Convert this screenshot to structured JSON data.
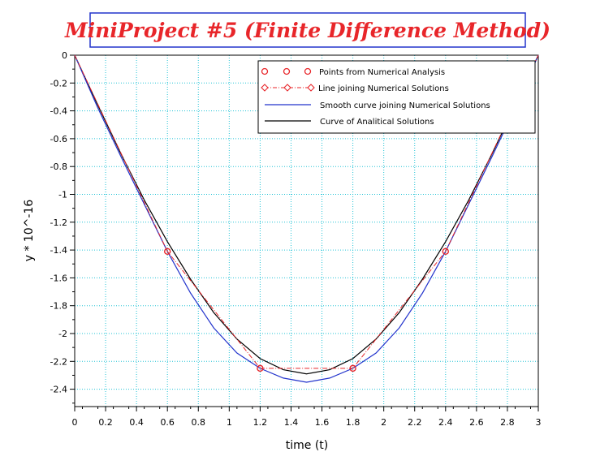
{
  "chart_data": {
    "type": "line",
    "title": "MiniProject #5 (Finite Difference Method)",
    "xlabel": "time (t)",
    "ylabel": "y * 10^-16",
    "xlim": [
      0,
      3
    ],
    "ylim": [
      -2.5,
      0
    ],
    "grid": true,
    "legend_position": "top-right",
    "xticks": [
      "0",
      "0.2",
      "0.4",
      "0.6",
      "0.8",
      "1",
      "1.2",
      "1.4",
      "1.6",
      "1.8",
      "2",
      "2.2",
      "2.4",
      "2.6",
      "2.8",
      "3"
    ],
    "yticks": [
      "0",
      "-0.2",
      "-0.4",
      "-0.6",
      "-0.8",
      "-1",
      "-1.2",
      "-1.4",
      "-1.6",
      "-1.8",
      "-2",
      "-2.2",
      "-2.4"
    ],
    "series": [
      {
        "name": "Points from Numerical Analysis",
        "style": "markers",
        "color": "#e8262a",
        "x": [
          0.6,
          1.2,
          1.8,
          2.4
        ],
        "y": [
          -1.41,
          -2.25,
          -2.25,
          -1.41
        ]
      },
      {
        "name": "Line joining Numerical Solutions",
        "style": "dash-dot-diamond",
        "color": "#e8262a",
        "x": [
          0,
          0.6,
          1.2,
          1.8,
          2.4,
          3
        ],
        "y": [
          0,
          -1.41,
          -2.25,
          -2.25,
          -1.41,
          0
        ]
      },
      {
        "name": "Smooth curve joining Numerical Solutions",
        "style": "solid",
        "color": "#2233cc",
        "x": [
          0,
          0.15,
          0.3,
          0.45,
          0.6,
          0.75,
          0.9,
          1.05,
          1.2,
          1.35,
          1.5,
          1.65,
          1.8,
          1.95,
          2.1,
          2.25,
          2.4,
          2.55,
          2.7,
          2.85,
          3
        ],
        "y": [
          0,
          -0.38,
          -0.73,
          -1.07,
          -1.41,
          -1.71,
          -1.96,
          -2.14,
          -2.25,
          -2.32,
          -2.35,
          -2.32,
          -2.25,
          -2.14,
          -1.96,
          -1.71,
          -1.41,
          -1.07,
          -0.73,
          -0.38,
          0
        ]
      },
      {
        "name": "Curve of Analitical Solutions",
        "style": "solid",
        "color": "#000000",
        "x": [
          0,
          0.15,
          0.3,
          0.45,
          0.6,
          0.75,
          0.9,
          1.05,
          1.2,
          1.35,
          1.5,
          1.65,
          1.8,
          1.95,
          2.1,
          2.25,
          2.4,
          2.55,
          2.7,
          2.85,
          3
        ],
        "y": [
          0,
          -0.36,
          -0.71,
          -1.04,
          -1.34,
          -1.61,
          -1.85,
          -2.04,
          -2.18,
          -2.26,
          -2.29,
          -2.26,
          -2.18,
          -2.04,
          -1.85,
          -1.61,
          -1.34,
          -1.04,
          -0.71,
          -0.36,
          0
        ]
      }
    ]
  },
  "colors": {
    "title": "#e8262a",
    "title_border": "#2233cc",
    "grid": "#22c3d6",
    "axis": "#000000"
  }
}
